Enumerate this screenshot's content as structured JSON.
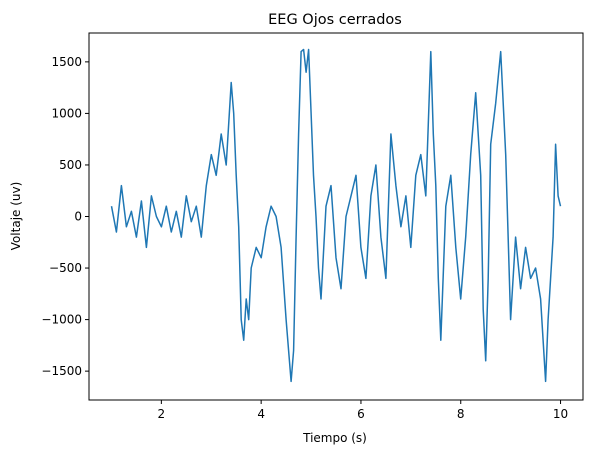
{
  "chart_data": {
    "type": "line",
    "title": "EEG Ojos cerrados",
    "xlabel": "Tiempo (s)",
    "ylabel": "Voltaje (uv)",
    "xlim": [
      0.55,
      10.45
    ],
    "ylim": [
      -1780,
      1780
    ],
    "xticks": [
      2,
      4,
      6,
      8,
      10
    ],
    "yticks": [
      -1500,
      -1000,
      -500,
      0,
      500,
      1000,
      1500
    ],
    "grid": false,
    "series": [
      {
        "color": "#1f77b4",
        "x": [
          1.0,
          1.1,
          1.2,
          1.3,
          1.4,
          1.5,
          1.6,
          1.7,
          1.8,
          1.9,
          2.0,
          2.1,
          2.2,
          2.3,
          2.4,
          2.5,
          2.6,
          2.7,
          2.8,
          2.9,
          3.0,
          3.1,
          3.2,
          3.3,
          3.4,
          3.45,
          3.5,
          3.55,
          3.6,
          3.65,
          3.7,
          3.75,
          3.8,
          3.9,
          4.0,
          4.1,
          4.2,
          4.3,
          4.4,
          4.5,
          4.6,
          4.65,
          4.7,
          4.75,
          4.8,
          4.85,
          4.9,
          4.95,
          5.0,
          5.05,
          5.1,
          5.15,
          5.2,
          5.3,
          5.4,
          5.5,
          5.6,
          5.7,
          5.8,
          5.9,
          6.0,
          6.1,
          6.2,
          6.3,
          6.4,
          6.5,
          6.6,
          6.7,
          6.8,
          6.9,
          7.0,
          7.1,
          7.2,
          7.3,
          7.4,
          7.45,
          7.5,
          7.55,
          7.6,
          7.7,
          7.8,
          7.9,
          8.0,
          8.1,
          8.2,
          8.3,
          8.4,
          8.45,
          8.5,
          8.55,
          8.6,
          8.7,
          8.8,
          8.9,
          9.0,
          9.1,
          9.2,
          9.3,
          9.4,
          9.5,
          9.6,
          9.65,
          9.7,
          9.75,
          9.8,
          9.85,
          9.9,
          9.95,
          10.0
        ],
        "values": [
          100,
          -150,
          300,
          -100,
          50,
          -200,
          150,
          -300,
          200,
          0,
          -100,
          100,
          -150,
          50,
          -200,
          200,
          -50,
          100,
          -200,
          300,
          600,
          400,
          800,
          500,
          1300,
          1000,
          400,
          -100,
          -1000,
          -1200,
          -800,
          -1000,
          -500,
          -300,
          -400,
          -100,
          100,
          0,
          -300,
          -1000,
          -1600,
          -1300,
          -200,
          800,
          1600,
          1620,
          1400,
          1620,
          1000,
          400,
          0,
          -500,
          -800,
          100,
          300,
          -400,
          -700,
          0,
          200,
          400,
          -300,
          -600,
          200,
          500,
          -200,
          -600,
          800,
          300,
          -100,
          200,
          -300,
          400,
          600,
          200,
          1600,
          800,
          300,
          -600,
          -1200,
          100,
          400,
          -300,
          -800,
          -200,
          600,
          1200,
          400,
          -900,
          -1400,
          -600,
          700,
          1100,
          1600,
          600,
          -1000,
          -200,
          -700,
          -300,
          -600,
          -500,
          -800,
          -1200,
          -1600,
          -1000,
          -600,
          -200,
          700,
          200,
          100
        ]
      }
    ]
  }
}
